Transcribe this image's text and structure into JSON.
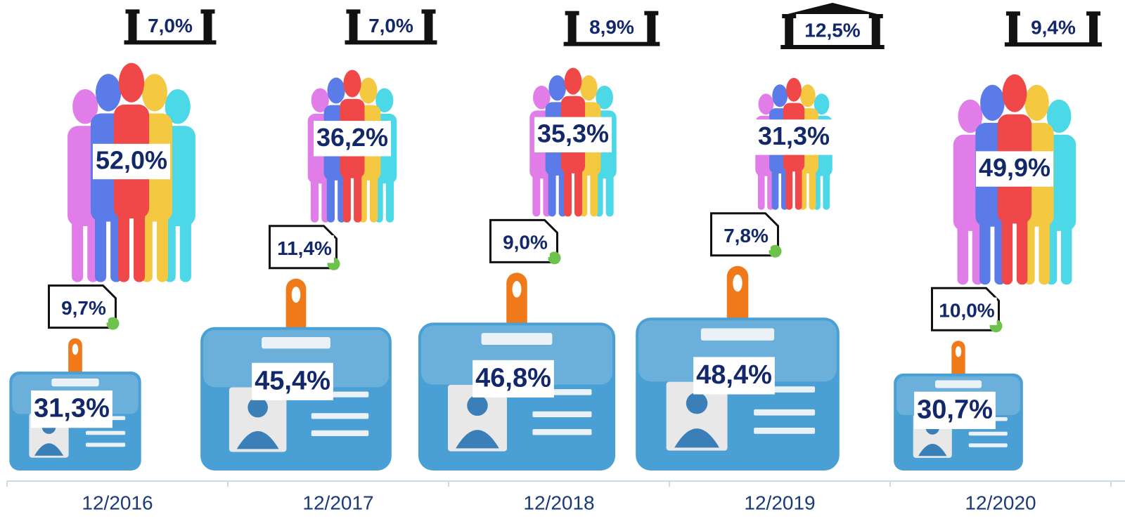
{
  "chart_data": {
    "type": "pictogram",
    "categories": [
      "12/2016",
      "12/2017",
      "12/2018",
      "12/2019",
      "12/2020"
    ],
    "series": [
      {
        "color": "#4a9fd4",
        "values": [
          31.3,
          45.4,
          46.8,
          48.4,
          30.7
        ],
        "value_labels": [
          "31,3%",
          "45,4%",
          "46,8%",
          "48,4%",
          "30,7%"
        ]
      },
      {
        "color": "#111111",
        "values": [
          9.7,
          11.4,
          9.0,
          7.8,
          10.0
        ],
        "value_labels": [
          "9,7%",
          "11,4%",
          "9,0%",
          "7,8%",
          "10,0%"
        ]
      },
      {
        "color": "#f04848",
        "values": [
          52.0,
          36.2,
          35.3,
          31.3,
          49.9
        ],
        "value_labels": [
          "52,0%",
          "36,2%",
          "35,3%",
          "31,3%",
          "49,9%"
        ]
      },
      {
        "color": "#111111",
        "values": [
          7.0,
          7.0,
          8.9,
          12.5,
          9.4
        ],
        "value_labels": [
          "7,0%",
          "7,0%",
          "8,9%",
          "12,5%",
          "9,4%"
        ]
      }
    ]
  }
}
